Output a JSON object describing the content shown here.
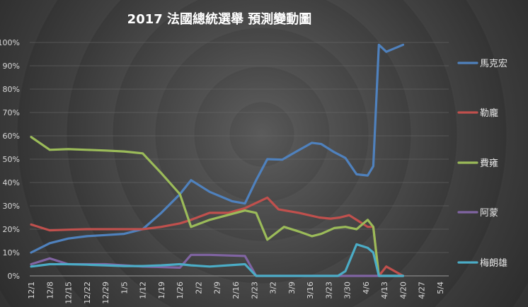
{
  "chart_data": {
    "type": "line",
    "title": "2017 法國總統選舉 預測變動圖",
    "xlabel": "",
    "ylabel": "",
    "ylim": [
      0,
      100
    ],
    "yticks": [
      "0%",
      "10%",
      "20%",
      "30%",
      "40%",
      "50%",
      "60%",
      "70%",
      "80%",
      "90%",
      "100%"
    ],
    "categories": [
      "12/1",
      "12/8",
      "12/15",
      "12/22",
      "12/29",
      "1/5",
      "1/12",
      "1/19",
      "1/26",
      "2/2",
      "2/9",
      "2/16",
      "2/23",
      "3/2",
      "3/9",
      "3/16",
      "3/23",
      "3/30",
      "4/6",
      "4/13",
      "4/20",
      "4/27",
      "5/4"
    ],
    "legend_position": "right",
    "grid": true,
    "series": [
      {
        "name": "馬克宏",
        "color": "#4f81bd",
        "points": [
          [
            0,
            10
          ],
          [
            1,
            14
          ],
          [
            2,
            16
          ],
          [
            3,
            17
          ],
          [
            4,
            17.5
          ],
          [
            5,
            18
          ],
          [
            6,
            20
          ],
          [
            7,
            27
          ],
          [
            8,
            35
          ],
          [
            8.6,
            41
          ],
          [
            9.6,
            36
          ],
          [
            10.8,
            32
          ],
          [
            11.5,
            31
          ],
          [
            12.1,
            41
          ],
          [
            12.7,
            50
          ],
          [
            13.5,
            49.8
          ],
          [
            14.2,
            53
          ],
          [
            15.1,
            57
          ],
          [
            15.6,
            56.5
          ],
          [
            16.3,
            53
          ],
          [
            16.9,
            50.5
          ],
          [
            17.5,
            43.5
          ],
          [
            18.1,
            43
          ],
          [
            18.4,
            47
          ],
          [
            18.7,
            99
          ],
          [
            19.1,
            96
          ],
          [
            20,
            99
          ]
        ]
      },
      {
        "name": "勒龐",
        "color": "#c0504d",
        "points": [
          [
            0,
            22
          ],
          [
            1,
            19.5
          ],
          [
            2,
            19.8
          ],
          [
            3,
            20
          ],
          [
            4,
            20
          ],
          [
            5,
            20
          ],
          [
            6,
            20
          ],
          [
            7,
            21
          ],
          [
            8,
            22.5
          ],
          [
            8.6,
            24
          ],
          [
            9.6,
            27
          ],
          [
            10.6,
            27
          ],
          [
            11.5,
            29
          ],
          [
            12.7,
            33.5
          ],
          [
            13.3,
            28.5
          ],
          [
            14.4,
            27
          ],
          [
            15.5,
            25
          ],
          [
            16.1,
            24.5
          ],
          [
            16.6,
            25
          ],
          [
            17.1,
            26
          ],
          [
            17.6,
            23.5
          ],
          [
            18.1,
            21
          ],
          [
            18.4,
            21
          ],
          [
            18.7,
            0
          ],
          [
            19.1,
            4
          ],
          [
            20,
            0
          ]
        ]
      },
      {
        "name": "費雍",
        "color": "#9bbb59",
        "points": [
          [
            0,
            59.5
          ],
          [
            1,
            54
          ],
          [
            2,
            54.3
          ],
          [
            3,
            54
          ],
          [
            4,
            53.7
          ],
          [
            5,
            53.3
          ],
          [
            6,
            52.5
          ],
          [
            7,
            44
          ],
          [
            8,
            35
          ],
          [
            8.6,
            21
          ],
          [
            9.6,
            24
          ],
          [
            11.5,
            28
          ],
          [
            12.1,
            27
          ],
          [
            12.7,
            15.5
          ],
          [
            13.6,
            21
          ],
          [
            14.4,
            19
          ],
          [
            15.1,
            17
          ],
          [
            15.6,
            18
          ],
          [
            16.3,
            20.5
          ],
          [
            16.9,
            21
          ],
          [
            17.5,
            20
          ],
          [
            18.1,
            24
          ],
          [
            18.4,
            21
          ],
          [
            18.7,
            0
          ],
          [
            20,
            0
          ]
        ]
      },
      {
        "name": "阿蒙",
        "color": "#8064a2",
        "points": [
          [
            0,
            5
          ],
          [
            1,
            7.5
          ],
          [
            2,
            5
          ],
          [
            3,
            5
          ],
          [
            4,
            5
          ],
          [
            5,
            4.5
          ],
          [
            6,
            4
          ],
          [
            7,
            3.8
          ],
          [
            8,
            3.5
          ],
          [
            8.6,
            9
          ],
          [
            9.6,
            9
          ],
          [
            11.5,
            8.5
          ],
          [
            12.1,
            0
          ],
          [
            18.7,
            0
          ],
          [
            20,
            0
          ]
        ]
      },
      {
        "name": "梅朗雄",
        "color": "#4bacc6",
        "points": [
          [
            0,
            4
          ],
          [
            1,
            5
          ],
          [
            2,
            5
          ],
          [
            3,
            4.8
          ],
          [
            4,
            4.5
          ],
          [
            5,
            4.2
          ],
          [
            6,
            4.2
          ],
          [
            7,
            4.5
          ],
          [
            8,
            5
          ],
          [
            8.6,
            4.5
          ],
          [
            9.6,
            4
          ],
          [
            11.5,
            5
          ],
          [
            12.1,
            0
          ],
          [
            16.5,
            0
          ],
          [
            16.9,
            2
          ],
          [
            17.5,
            13.5
          ],
          [
            18.1,
            12
          ],
          [
            18.4,
            10
          ],
          [
            18.7,
            0
          ],
          [
            20,
            0
          ]
        ]
      }
    ]
  }
}
